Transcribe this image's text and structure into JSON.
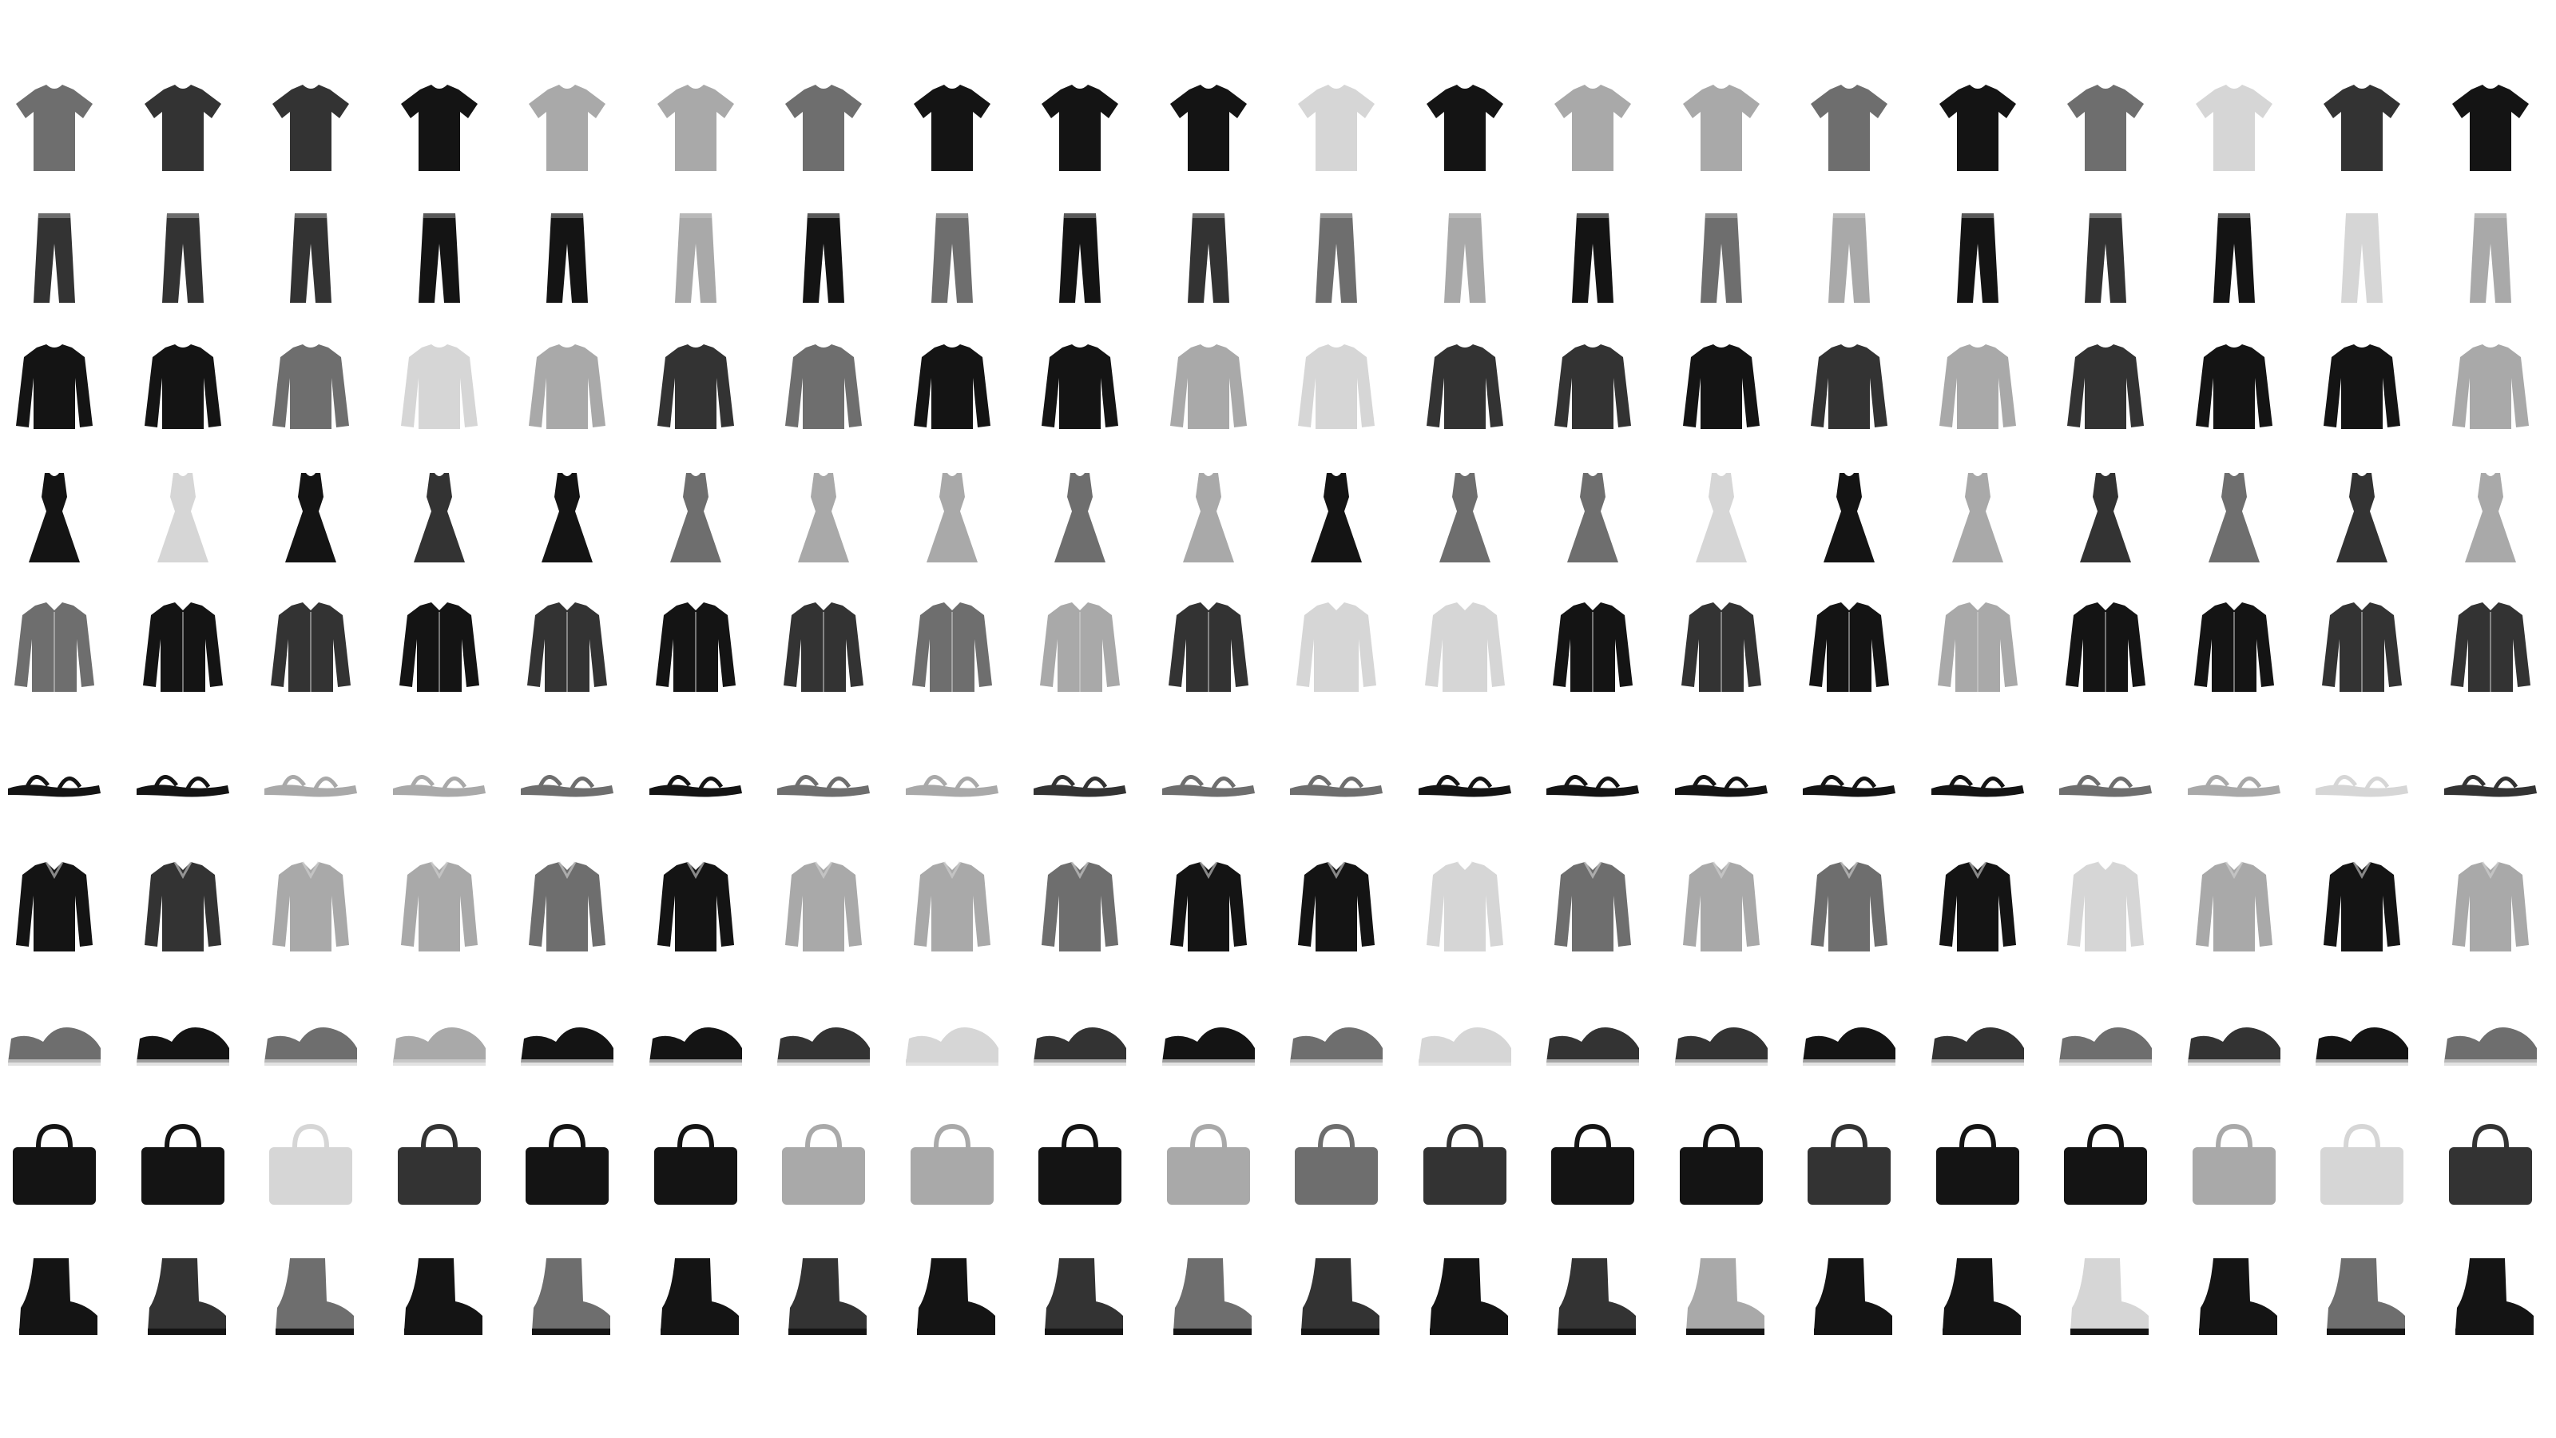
{
  "grid": {
    "columns": 20,
    "rows": 10,
    "palette": {
      "background": "#ffffff",
      "black": "#141414",
      "dark": "#333333",
      "mid": "#6e6e6e",
      "light": "#a9a9a9",
      "pale": "#d6d6d6"
    },
    "row_items": [
      {
        "icon": "tshirt-icon",
        "tones": [
          "mid",
          "dark",
          "dark",
          "black",
          "light",
          "light",
          "mid",
          "black",
          "black",
          "black",
          "pale",
          "black",
          "light",
          "light",
          "mid",
          "black",
          "mid",
          "pale",
          "dark",
          "black"
        ]
      },
      {
        "icon": "trousers-icon",
        "tones": [
          "dark",
          "dark",
          "dark",
          "black",
          "black",
          "light",
          "black",
          "mid",
          "black",
          "dark",
          "mid",
          "light",
          "black",
          "mid",
          "light",
          "black",
          "dark",
          "black",
          "pale",
          "light"
        ]
      },
      {
        "icon": "pullover-icon",
        "tones": [
          "black",
          "black",
          "mid",
          "pale",
          "light",
          "dark",
          "mid",
          "black",
          "black",
          "light",
          "pale",
          "dark",
          "dark",
          "black",
          "dark",
          "light",
          "dark",
          "black",
          "black",
          "light"
        ]
      },
      {
        "icon": "dress-icon",
        "tones": [
          "black",
          "pale",
          "black",
          "dark",
          "black",
          "mid",
          "light",
          "light",
          "mid",
          "light",
          "black",
          "mid",
          "mid",
          "pale",
          "black",
          "light",
          "dark",
          "mid",
          "dark",
          "light"
        ]
      },
      {
        "icon": "coat-icon",
        "tones": [
          "mid",
          "black",
          "dark",
          "black",
          "dark",
          "black",
          "dark",
          "mid",
          "light",
          "dark",
          "pale",
          "pale",
          "black",
          "dark",
          "black",
          "light",
          "black",
          "black",
          "dark",
          "dark"
        ]
      },
      {
        "icon": "sandal-icon",
        "tones": [
          "black",
          "black",
          "light",
          "light",
          "mid",
          "black",
          "mid",
          "light",
          "dark",
          "mid",
          "mid",
          "black",
          "black",
          "black",
          "black",
          "black",
          "mid",
          "light",
          "pale",
          "dark"
        ]
      },
      {
        "icon": "shirt-icon",
        "tones": [
          "black",
          "dark",
          "light",
          "light",
          "mid",
          "black",
          "light",
          "light",
          "mid",
          "black",
          "black",
          "pale",
          "mid",
          "light",
          "mid",
          "black",
          "pale",
          "light",
          "black",
          "light"
        ]
      },
      {
        "icon": "sneaker-icon",
        "tones": [
          "mid",
          "black",
          "mid",
          "light",
          "black",
          "black",
          "dark",
          "pale",
          "dark",
          "black",
          "mid",
          "pale",
          "dark",
          "dark",
          "black",
          "dark",
          "mid",
          "dark",
          "black",
          "mid"
        ]
      },
      {
        "icon": "bag-icon",
        "tones": [
          "black",
          "black",
          "pale",
          "dark",
          "black",
          "black",
          "light",
          "light",
          "black",
          "light",
          "mid",
          "dark",
          "black",
          "black",
          "dark",
          "black",
          "black",
          "light",
          "pale",
          "dark"
        ]
      },
      {
        "icon": "ankle-boot-icon",
        "tones": [
          "black",
          "dark",
          "mid",
          "black",
          "mid",
          "black",
          "dark",
          "black",
          "dark",
          "mid",
          "dark",
          "black",
          "dark",
          "light",
          "black",
          "black",
          "pale",
          "black",
          "mid",
          "black"
        ]
      }
    ]
  }
}
